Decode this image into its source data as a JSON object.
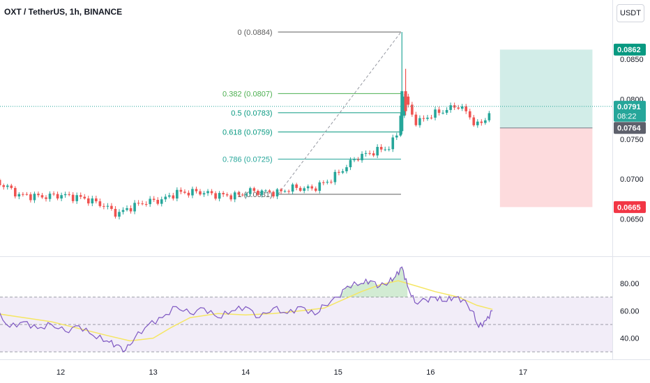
{
  "header": {
    "symbol_title": "OXT / TetherUS, 1h, BINANCE",
    "currency": "USDT"
  },
  "colors": {
    "up": "#26a69a",
    "down": "#ef5350",
    "rsi_line": "#7e57c2",
    "rsi_ma": "#f5e663",
    "fib_line": "#5c5c5c",
    "target": "#089981",
    "stop": "#f23645",
    "rsi_band": "#ede7f6"
  },
  "chart_data": [
    {
      "type": "candlestick",
      "title": "OXT / TetherUS, 1h, BINANCE",
      "x_ticks": [
        "12",
        "13",
        "14",
        "15",
        "16",
        "17"
      ],
      "y_ticks": [
        "0.0650",
        "0.0700",
        "0.0750",
        "0.0800",
        "0.0850"
      ],
      "ylim": [
        0.0635,
        0.091
      ],
      "price_path": [
        {
          "day": 11.05,
          "price": 0.069
        },
        {
          "day": 11.3,
          "price": 0.0697
        },
        {
          "day": 11.42,
          "price": 0.069
        },
        {
          "day": 11.55,
          "price": 0.068
        },
        {
          "day": 11.8,
          "price": 0.0678
        },
        {
          "day": 12.0,
          "price": 0.068
        },
        {
          "day": 12.25,
          "price": 0.0676
        },
        {
          "day": 12.45,
          "price": 0.0668
        },
        {
          "day": 12.62,
          "price": 0.0656
        },
        {
          "day": 12.72,
          "price": 0.0663
        },
        {
          "day": 12.9,
          "price": 0.0671
        },
        {
          "day": 13.1,
          "price": 0.0674
        },
        {
          "day": 13.25,
          "price": 0.0683
        },
        {
          "day": 13.5,
          "price": 0.0684
        },
        {
          "day": 13.7,
          "price": 0.068
        },
        {
          "day": 13.9,
          "price": 0.0679
        },
        {
          "day": 14.05,
          "price": 0.0685
        },
        {
          "day": 14.2,
          "price": 0.0684
        },
        {
          "day": 14.35,
          "price": 0.0683
        },
        {
          "day": 14.5,
          "price": 0.0689
        },
        {
          "day": 14.72,
          "price": 0.0688
        },
        {
          "day": 14.9,
          "price": 0.0698
        },
        {
          "day": 15.05,
          "price": 0.0712
        },
        {
          "day": 15.2,
          "price": 0.0727
        },
        {
          "day": 15.38,
          "price": 0.0734
        },
        {
          "day": 15.55,
          "price": 0.074
        },
        {
          "day": 15.65,
          "price": 0.0758
        },
        {
          "day": 15.7,
          "price": 0.0807
        },
        {
          "day": 15.76,
          "price": 0.079
        },
        {
          "day": 15.85,
          "price": 0.077
        },
        {
          "day": 16.0,
          "price": 0.078
        },
        {
          "day": 16.15,
          "price": 0.0786
        },
        {
          "day": 16.3,
          "price": 0.0792
        },
        {
          "day": 16.4,
          "price": 0.0782
        },
        {
          "day": 16.5,
          "price": 0.0766
        },
        {
          "day": 16.6,
          "price": 0.0776
        },
        {
          "day": 16.66,
          "price": 0.0791
        }
      ],
      "spikes": [
        {
          "day": 15.69,
          "high": 0.0884,
          "low": 0.0756
        },
        {
          "day": 15.73,
          "high": 0.0838,
          "low": 0.078
        }
      ],
      "fibonacci": [
        {
          "level": "0",
          "label": "0 (0.0884)",
          "price": 0.0884
        },
        {
          "level": "0.382",
          "label": "0.382 (0.0807)",
          "price": 0.0807,
          "color": "#4caf50"
        },
        {
          "level": "0.5",
          "label": "0.5 (0.0783)",
          "price": 0.0783,
          "color": "#089981"
        },
        {
          "level": "0.618",
          "label": "0.618 (0.0759)",
          "price": 0.0759,
          "color": "#089981"
        },
        {
          "level": "0.786",
          "label": "0.786 (0.0725)",
          "price": 0.0725,
          "color": "#26a69a"
        },
        {
          "level": "1",
          "label": "1 (0.0681)",
          "price": 0.0681
        }
      ],
      "fib_range": {
        "start_day": 14.35,
        "end_day": 15.68
      },
      "trend_line": {
        "from": {
          "day": 14.35,
          "price": 0.0681
        },
        "to": {
          "day": 15.68,
          "price": 0.0884
        }
      },
      "position": {
        "start_day": 16.75,
        "end_day": 17.75,
        "entry": 0.0764,
        "target": 0.0862,
        "stop": 0.0665
      },
      "price_labels": [
        {
          "text": "0.0862",
          "price": 0.0862,
          "kind": "target"
        },
        {
          "text": "0.0791",
          "subtext": "08:22",
          "price": 0.0791,
          "kind": "current"
        },
        {
          "text": "0.0764",
          "price": 0.0764,
          "kind": "entry"
        },
        {
          "text": "0.0665",
          "price": 0.0665,
          "kind": "stop"
        }
      ]
    },
    {
      "type": "line",
      "indicator": "RSI",
      "y_ticks": [
        "40.00",
        "60.00",
        "80.00"
      ],
      "ylim": [
        28,
        93
      ],
      "bands": [
        30,
        50,
        70
      ],
      "series": [
        {
          "role": "rsi",
          "points": [
            {
              "day": 11.0,
              "value": 58
            },
            {
              "day": 11.15,
              "value": 55
            },
            {
              "day": 11.3,
              "value": 60
            },
            {
              "day": 11.45,
              "value": 48
            },
            {
              "day": 11.6,
              "value": 52
            },
            {
              "day": 11.75,
              "value": 47
            },
            {
              "day": 11.9,
              "value": 50
            },
            {
              "day": 12.05,
              "value": 45
            },
            {
              "day": 12.2,
              "value": 49
            },
            {
              "day": 12.35,
              "value": 42
            },
            {
              "day": 12.5,
              "value": 38
            },
            {
              "day": 12.6,
              "value": 35
            },
            {
              "day": 12.7,
              "value": 31
            },
            {
              "day": 12.8,
              "value": 40
            },
            {
              "day": 12.95,
              "value": 50
            },
            {
              "day": 13.1,
              "value": 55
            },
            {
              "day": 13.25,
              "value": 63
            },
            {
              "day": 13.4,
              "value": 58
            },
            {
              "day": 13.55,
              "value": 62
            },
            {
              "day": 13.7,
              "value": 55
            },
            {
              "day": 13.85,
              "value": 60
            },
            {
              "day": 14.0,
              "value": 63
            },
            {
              "day": 14.15,
              "value": 55
            },
            {
              "day": 14.3,
              "value": 62
            },
            {
              "day": 14.45,
              "value": 58
            },
            {
              "day": 14.6,
              "value": 63
            },
            {
              "day": 14.75,
              "value": 57
            },
            {
              "day": 14.85,
              "value": 64
            },
            {
              "day": 15.0,
              "value": 70
            },
            {
              "day": 15.1,
              "value": 78
            },
            {
              "day": 15.25,
              "value": 80
            },
            {
              "day": 15.35,
              "value": 82
            },
            {
              "day": 15.45,
              "value": 78
            },
            {
              "day": 15.55,
              "value": 81
            },
            {
              "day": 15.62,
              "value": 85
            },
            {
              "day": 15.69,
              "value": 92
            },
            {
              "day": 15.75,
              "value": 78
            },
            {
              "day": 15.83,
              "value": 66
            },
            {
              "day": 15.95,
              "value": 68
            },
            {
              "day": 16.05,
              "value": 70
            },
            {
              "day": 16.15,
              "value": 67
            },
            {
              "day": 16.25,
              "value": 70
            },
            {
              "day": 16.35,
              "value": 68
            },
            {
              "day": 16.45,
              "value": 60
            },
            {
              "day": 16.52,
              "value": 48
            },
            {
              "day": 16.6,
              "value": 53
            },
            {
              "day": 16.67,
              "value": 60
            }
          ]
        },
        {
          "role": "rsi_ma",
          "points": [
            {
              "day": 11.0,
              "value": 60
            },
            {
              "day": 11.3,
              "value": 58
            },
            {
              "day": 11.6,
              "value": 55
            },
            {
              "day": 11.9,
              "value": 52
            },
            {
              "day": 12.2,
              "value": 47
            },
            {
              "day": 12.5,
              "value": 42
            },
            {
              "day": 12.75,
              "value": 38
            },
            {
              "day": 13.0,
              "value": 40
            },
            {
              "day": 13.2,
              "value": 48
            },
            {
              "day": 13.4,
              "value": 55
            },
            {
              "day": 13.7,
              "value": 58
            },
            {
              "day": 14.0,
              "value": 57
            },
            {
              "day": 14.3,
              "value": 58
            },
            {
              "day": 14.6,
              "value": 60
            },
            {
              "day": 14.85,
              "value": 62
            },
            {
              "day": 15.05,
              "value": 68
            },
            {
              "day": 15.25,
              "value": 74
            },
            {
              "day": 15.45,
              "value": 79
            },
            {
              "day": 15.65,
              "value": 82
            },
            {
              "day": 15.85,
              "value": 78
            },
            {
              "day": 16.05,
              "value": 74
            },
            {
              "day": 16.3,
              "value": 70
            },
            {
              "day": 16.5,
              "value": 64
            },
            {
              "day": 16.67,
              "value": 61
            }
          ]
        }
      ]
    }
  ]
}
